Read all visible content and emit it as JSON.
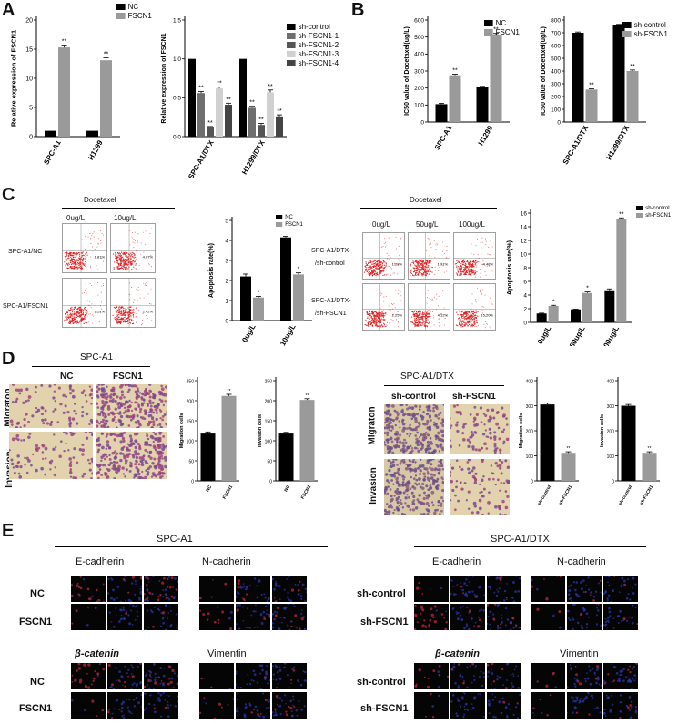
{
  "panel_letters": [
    "A",
    "B",
    "C",
    "D",
    "E"
  ],
  "colors": {
    "black": "#000000",
    "grey": "#9a9a9a",
    "dark": "#6e6e6e",
    "light": "#d0d0d0",
    "mid": "#555555"
  },
  "chart_data": [
    {
      "id": "A1",
      "type": "bar",
      "ylabel": "Relative expression of FSCN1",
      "categories": [
        "SPC-A1",
        "H1299"
      ],
      "series": [
        {
          "name": "NC",
          "values": [
            1,
            1
          ],
          "err": [
            0,
            0
          ]
        },
        {
          "name": "FSCN1",
          "values": [
            15.3,
            13.1
          ],
          "err": [
            0.4,
            0.4
          ]
        }
      ],
      "ylim": [
        0,
        20
      ],
      "yticks": [
        0,
        5,
        10,
        15,
        20
      ],
      "sig": [
        [
          "",
          "**"
        ],
        [
          "",
          "**"
        ]
      ]
    },
    {
      "id": "A2",
      "type": "bar",
      "ylabel": "Relative expression of FSCN1",
      "categories": [
        "SPC-A1/DTX",
        "H1299/DTX"
      ],
      "series": [
        {
          "name": "sh-control",
          "values": [
            1,
            1
          ],
          "err": [
            0,
            0
          ]
        },
        {
          "name": "sh-FSCN1-1",
          "values": [
            0.56,
            0.37
          ],
          "err": [
            0.02,
            0.02
          ]
        },
        {
          "name": "sh-FSCN1-2",
          "values": [
            0.12,
            0.15
          ],
          "err": [
            0.01,
            0.02
          ]
        },
        {
          "name": "sh-FSCN1-3",
          "values": [
            0.62,
            0.57
          ],
          "err": [
            0.02,
            0.03
          ]
        },
        {
          "name": "sh-FSCN1-4",
          "values": [
            0.41,
            0.26
          ],
          "err": [
            0.02,
            0.02
          ]
        }
      ],
      "ylim": [
        0,
        1.5
      ],
      "yticks": [
        0,
        0.5,
        1,
        1.5
      ],
      "ytick_labels": [
        "0.0",
        "0.5",
        "1.0",
        "1.5"
      ],
      "sig": [
        [
          "",
          "**",
          "**",
          "**",
          "**"
        ],
        [
          "",
          "**",
          "**",
          "**",
          "**"
        ]
      ]
    },
    {
      "id": "B1",
      "type": "bar",
      "ylabel": "IC50 value of Docetaxel(ug/L)",
      "categories": [
        "SPC-A1",
        "H1299"
      ],
      "series": [
        {
          "name": "NC",
          "values": [
            105,
            205
          ],
          "err": [
            5,
            5
          ]
        },
        {
          "name": "FSCN1",
          "values": [
            275,
            515
          ],
          "err": [
            6,
            6
          ]
        }
      ],
      "ylim": [
        0,
        600
      ],
      "yticks": [
        0,
        100,
        200,
        300,
        400,
        500,
        600
      ],
      "sig": [
        [
          "",
          "**"
        ],
        [
          "",
          "**"
        ]
      ]
    },
    {
      "id": "B2",
      "type": "bar",
      "ylabel": "IC50 value of Docetaxel(ug/L)",
      "categories": [
        "SPC-A1/DTX",
        "H1299/DTX"
      ],
      "series": [
        {
          "name": "sh-control",
          "values": [
            700,
            760
          ],
          "err": [
            6,
            6
          ]
        },
        {
          "name": "sh-FSCN1",
          "values": [
            255,
            400
          ],
          "err": [
            5,
            8
          ]
        }
      ],
      "ylim": [
        0,
        800
      ],
      "yticks": [
        0,
        100,
        200,
        300,
        400,
        500,
        600,
        700,
        800
      ],
      "sig": [
        [
          "",
          "**"
        ],
        [
          "",
          "**"
        ]
      ]
    },
    {
      "id": "C1",
      "type": "bar",
      "ylabel": "Apoptosis rate(%)",
      "categories": [
        "0ug/L",
        "10ug/L"
      ],
      "series": [
        {
          "name": "NC",
          "values": [
            2.2,
            4.15
          ],
          "err": [
            0.12,
            0.05
          ]
        },
        {
          "name": "FSCN1",
          "values": [
            1.15,
            2.3
          ],
          "err": [
            0.05,
            0.08
          ]
        }
      ],
      "ylim": [
        0,
        5
      ],
      "yticks": [
        0,
        1,
        2,
        3,
        4,
        5
      ],
      "sig": [
        [
          "",
          "*"
        ],
        [
          "",
          "*"
        ]
      ]
    },
    {
      "id": "C2",
      "type": "bar",
      "ylabel": "Apoptosis rate(%)",
      "categories": [
        "0ug/L",
        "50ug/L",
        "100ug/L"
      ],
      "series": [
        {
          "name": "sh-control",
          "values": [
            1.3,
            1.9,
            4.7
          ],
          "err": [
            0.05,
            0.05,
            0.2
          ]
        },
        {
          "name": "sh-FSCN1",
          "values": [
            2.4,
            4.3,
            15.1
          ],
          "err": [
            0.1,
            0.15,
            0.2
          ]
        }
      ],
      "ylim": [
        0,
        16
      ],
      "yticks": [
        0,
        2,
        4,
        6,
        8,
        10,
        12,
        14,
        16
      ],
      "sig": [
        [
          "",
          "*"
        ],
        [
          "",
          "*"
        ],
        [
          "",
          "**"
        ]
      ]
    },
    {
      "id": "D1",
      "type": "bar",
      "ylabel": "Migration cells",
      "categories": [
        "NC",
        "FSCN1"
      ],
      "series": [
        {
          "name": "",
          "values": [
            118,
            212
          ],
          "err": [
            4,
            4
          ]
        }
      ],
      "ylim": [
        0,
        250
      ],
      "yticks": [
        0,
        50,
        100,
        150,
        200,
        250
      ],
      "sig": [
        [
          "",
          ""
        ],
        [
          "",
          "**"
        ]
      ]
    },
    {
      "id": "D2",
      "type": "bar",
      "ylabel": "Invasion cells",
      "categories": [
        "NC",
        "FSCN1"
      ],
      "series": [
        {
          "name": "",
          "values": [
            118,
            202
          ],
          "err": [
            3,
            3
          ]
        }
      ],
      "ylim": [
        0,
        250
      ],
      "yticks": [
        0,
        50,
        100,
        150,
        200,
        250
      ],
      "sig": [
        [
          "",
          ""
        ],
        [
          "",
          "**"
        ]
      ]
    },
    {
      "id": "D3",
      "type": "bar",
      "ylabel": "Migration cells",
      "categories": [
        "sh-control",
        "sh-FSCN1"
      ],
      "series": [
        {
          "name": "",
          "values": [
            305,
            112
          ],
          "err": [
            5,
            4
          ]
        }
      ],
      "ylim": [
        0,
        400
      ],
      "yticks": [
        0,
        100,
        200,
        300,
        400
      ],
      "sig": [
        [
          "",
          ""
        ],
        [
          "",
          "**"
        ]
      ]
    },
    {
      "id": "D4",
      "type": "bar",
      "ylabel": "Invasion cells",
      "categories": [
        "sh-control",
        "sh-FSCN1"
      ],
      "series": [
        {
          "name": "",
          "values": [
            300,
            112
          ],
          "err": [
            5,
            4
          ]
        }
      ],
      "ylim": [
        0,
        400
      ],
      "yticks": [
        0,
        100,
        200,
        300,
        400
      ],
      "sig": [
        [
          "",
          ""
        ],
        [
          "",
          "**"
        ]
      ]
    }
  ],
  "C": {
    "left_title": "Docetaxel",
    "left_cols": [
      "0ug/L",
      "10ug/L"
    ],
    "left_rows": [
      "SPC-A1/NC",
      "SPC-A1/FSCN1"
    ],
    "left_pcts": [
      [
        "2.81%",
        "4.07%"
      ],
      [
        "1.21%",
        "2.42%"
      ]
    ],
    "right_title": "Docetaxel",
    "right_cols": [
      "0ug/L",
      "50ug/L",
      "100ug/L"
    ],
    "right_rows": [
      "SPC-A1/DTX-\n/sh-control",
      "SPC-A1/DTX-\n/sh-FSCN1"
    ],
    "right_row1a": "SPC-A1/DTX-",
    "right_row1b": "/sh-control",
    "right_row2a": "SPC-A1/DTX-",
    "right_row2b": "/sh-FSCN1",
    "right_pcts": [
      [
        "1.28%",
        "1.91%",
        "4.48%"
      ],
      [
        "2.25%",
        "4.12%",
        "15.20%"
      ]
    ]
  },
  "D": {
    "left_title": "SPC-A1",
    "left_cols": [
      "NC",
      "FSCN1"
    ],
    "right_title": "SPC-A1/DTX",
    "right_cols": [
      "sh-control",
      "sh-FSCN1"
    ],
    "rows": [
      "Migraton",
      "Invasion"
    ]
  },
  "E": {
    "left_title": "SPC-A1",
    "right_title": "SPC-A1/DTX",
    "markers_top": [
      "E-cadherin",
      "N-cadherin"
    ],
    "markers_bottom": [
      "β-catenin",
      "Vimentin"
    ],
    "left_rows": [
      "NC",
      "FSCN1"
    ],
    "right_rows": [
      "sh-control",
      "sh-FSCN1"
    ]
  }
}
